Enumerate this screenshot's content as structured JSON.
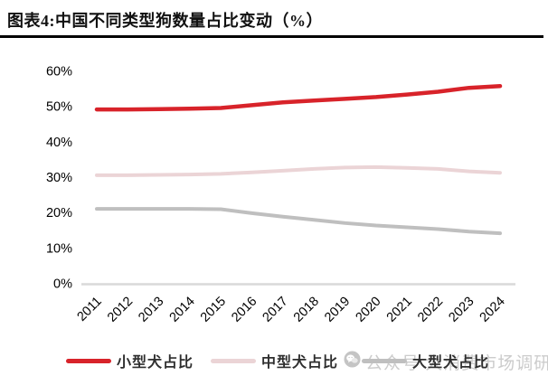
{
  "title": "图表4:中国不同类型狗数量占比变动（%）",
  "watermark": {
    "icon": "wechat-icon",
    "text": "公众号 大消费市场调研"
  },
  "legend": [
    {
      "label": "小型犬占比",
      "color": "#D8232A"
    },
    {
      "label": "中型犬占比",
      "color": "#EBD4D6"
    },
    {
      "label": "大型犬占比",
      "color": "#BFBFBF"
    }
  ],
  "chart_data": {
    "type": "line",
    "title": "图表4:中国不同类型狗数量占比变动（%）",
    "categories": [
      "2011",
      "2012",
      "2013",
      "2014",
      "2015",
      "2016",
      "2017",
      "2018",
      "2019",
      "2020",
      "2021",
      "2022",
      "2023",
      "2024"
    ],
    "series": [
      {
        "name": "小型犬占比",
        "color": "#D8232A",
        "values": [
          49.0,
          49.0,
          49.1,
          49.2,
          49.4,
          50.2,
          51.0,
          51.5,
          52.0,
          52.5,
          53.2,
          54.0,
          55.1,
          55.6
        ]
      },
      {
        "name": "中型犬占比",
        "color": "#EBD4D6",
        "values": [
          30.4,
          30.4,
          30.5,
          30.6,
          30.8,
          31.2,
          31.7,
          32.2,
          32.6,
          32.7,
          32.5,
          32.2,
          31.5,
          31.1
        ]
      },
      {
        "name": "大型犬占比",
        "color": "#BFBFBF",
        "values": [
          20.9,
          20.9,
          20.9,
          20.9,
          20.8,
          19.7,
          18.7,
          17.8,
          16.9,
          16.2,
          15.7,
          15.2,
          14.5,
          14.0
        ]
      }
    ],
    "xlabel": "",
    "ylabel": "",
    "ylim": [
      0,
      60
    ],
    "yticks": [
      "0%",
      "10%",
      "20%",
      "30%",
      "40%",
      "50%",
      "60%"
    ],
    "grid": false,
    "legend_position": "bottom",
    "axis_color": "#D9D9D9"
  }
}
